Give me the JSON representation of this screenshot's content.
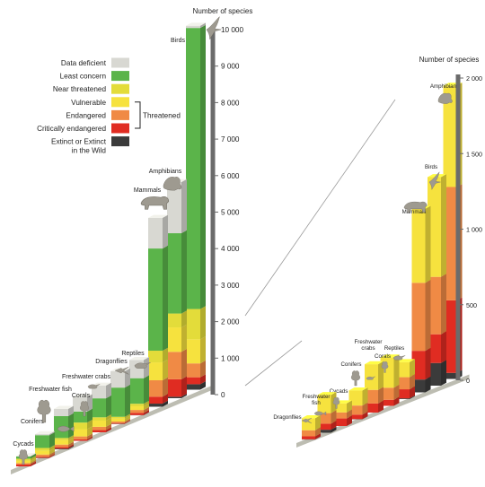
{
  "colors": {
    "data_deficient": "#d8d8d2",
    "least_concern": "#5bb44a",
    "near_threatened": "#e3dc3a",
    "vulnerable": "#f6e23e",
    "endangered": "#f08a45",
    "critically_endangered": "#e02c22",
    "extinct": "#3b3b3b",
    "axis": "#6b6b6b",
    "ground": "#bdbdb2"
  },
  "legend": {
    "items": [
      {
        "key": "data_deficient",
        "label": "Data deficient"
      },
      {
        "key": "least_concern",
        "label": "Least concern"
      },
      {
        "key": "near_threatened",
        "label": "Near threatened"
      },
      {
        "key": "vulnerable",
        "label": "Vulnerable"
      },
      {
        "key": "endangered",
        "label": "Endangered"
      },
      {
        "key": "critically_endangered",
        "label": "Critically endangered"
      },
      {
        "key": "extinct",
        "label": "Extinct or Extinct",
        "label2": "in the Wild"
      }
    ],
    "group_label": "Threatened"
  },
  "chart_data": [
    {
      "type": "bar",
      "stacked": true,
      "ylabel": "Number of species",
      "ylim": [
        0,
        10000
      ],
      "yticks": [
        "0",
        "1 000",
        "2 000",
        "3 000",
        "4 000",
        "5 000",
        "6 000",
        "7 000",
        "8 000",
        "9 000",
        "10 000"
      ],
      "categories": [
        "Cycads",
        "Conifers",
        "Freshwater fish",
        "Corals",
        "Freshwater crabs",
        "Dragonflies",
        "Reptiles",
        "Mammals",
        "Amphibians",
        "Birds"
      ],
      "series": [
        {
          "name": "Extinct or Extinct in the Wild",
          "values": [
            0,
            1,
            20,
            0,
            0,
            1,
            5,
            85,
            40,
            150
          ]
        },
        {
          "name": "Critically endangered",
          "values": [
            50,
            30,
            40,
            40,
            60,
            20,
            60,
            190,
            480,
            190
          ]
        },
        {
          "name": "Endangered",
          "values": [
            40,
            60,
            70,
            80,
            90,
            40,
            80,
            450,
            750,
            380
          ]
        },
        {
          "name": "Vulnerable",
          "values": [
            60,
            100,
            120,
            200,
            170,
            80,
            100,
            490,
            670,
            660
          ]
        },
        {
          "name": "Near threatened",
          "values": [
            60,
            80,
            60,
            180,
            90,
            50,
            70,
            320,
            380,
            830
          ]
        },
        {
          "name": "Least concern",
          "values": [
            60,
            350,
            600,
            300,
            520,
            800,
            700,
            2800,
            2200,
            7700
          ]
        },
        {
          "name": "Data deficient",
          "values": [
            10,
            30,
            200,
            400,
            350,
            450,
            500,
            840,
            1400,
            60
          ]
        }
      ]
    },
    {
      "type": "bar",
      "stacked": true,
      "ylabel": "Number of species",
      "ylim": [
        0,
        2000
      ],
      "yticks": [
        "0",
        "500",
        "1 000",
        "1 500",
        "2 000"
      ],
      "categories": [
        "Dragonflies",
        "Freshwater fish",
        "Cycads",
        "Conifers",
        "Freshwater crabs",
        "Corals",
        "Reptiles",
        "Mammals",
        "Birds",
        "Amphibians"
      ],
      "series": [
        {
          "name": "Extinct or Extinct in the Wild",
          "values": [
            1,
            20,
            0,
            1,
            0,
            0,
            5,
            85,
            150,
            40
          ]
        },
        {
          "name": "Critically endangered",
          "values": [
            20,
            40,
            50,
            30,
            60,
            40,
            60,
            190,
            190,
            480
          ]
        },
        {
          "name": "Endangered",
          "values": [
            40,
            70,
            40,
            60,
            90,
            80,
            80,
            450,
            380,
            750
          ]
        },
        {
          "name": "Vulnerable",
          "values": [
            80,
            120,
            60,
            100,
            170,
            200,
            100,
            490,
            660,
            670
          ]
        }
      ]
    }
  ]
}
